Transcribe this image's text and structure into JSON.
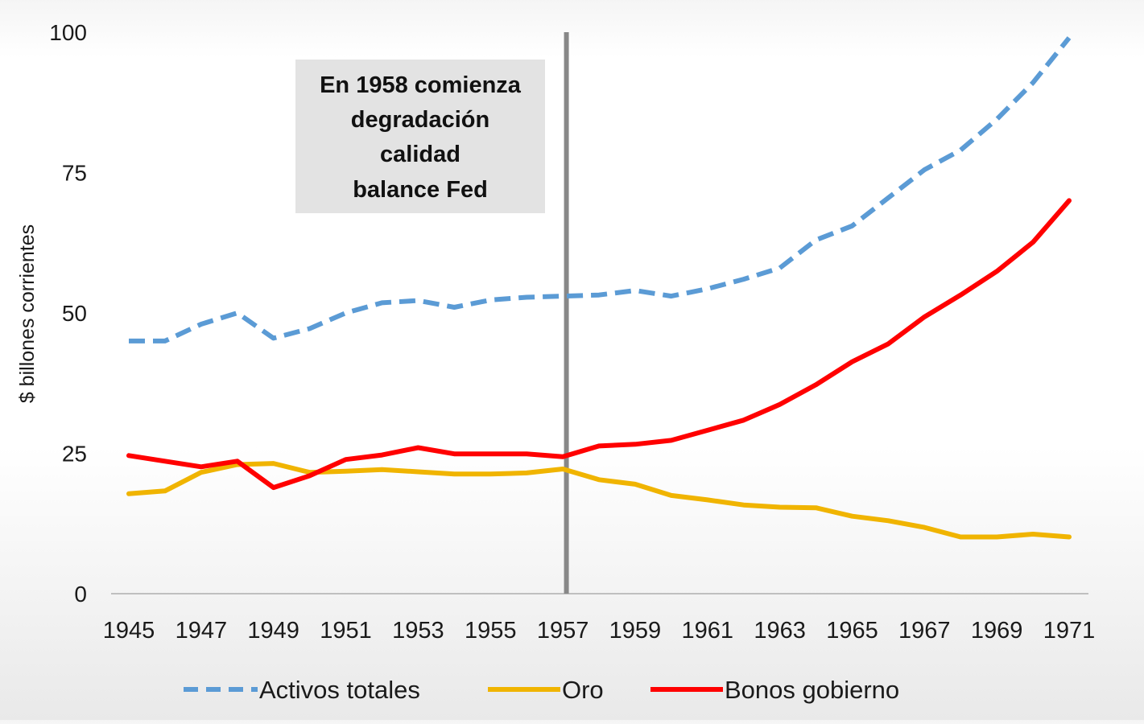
{
  "chart_data": {
    "type": "line",
    "title": "",
    "xlabel": "",
    "ylabel": "$ billones corrientes",
    "ylim": [
      0,
      100
    ],
    "yticks": [
      0,
      25,
      50,
      75,
      100
    ],
    "xlim": [
      1945,
      1971
    ],
    "xticks": [
      1945,
      1947,
      1949,
      1951,
      1953,
      1955,
      1957,
      1959,
      1961,
      1963,
      1965,
      1967,
      1969,
      1971
    ],
    "x": [
      1945,
      1946,
      1947,
      1948,
      1949,
      1950,
      1951,
      1952,
      1953,
      1954,
      1955,
      1956,
      1957,
      1958,
      1959,
      1960,
      1961,
      1962,
      1963,
      1964,
      1965,
      1966,
      1967,
      1968,
      1969,
      1970,
      1971
    ],
    "series": [
      {
        "name": "Activos totales",
        "color": "#5b9bd5",
        "dash": true,
        "values": [
          45,
          45,
          48,
          50,
          45.5,
          47.2,
          50,
          51.8,
          52.2,
          51,
          52.3,
          52.8,
          53,
          53.2,
          54,
          53,
          54.3,
          56,
          58,
          63,
          65.5,
          70.5,
          75.5,
          79,
          84.5,
          91,
          99
        ]
      },
      {
        "name": "Oro",
        "color": "#f0b400",
        "dash": false,
        "values": [
          17.8,
          18.3,
          21.6,
          23,
          23.2,
          21.6,
          21.8,
          22.1,
          21.7,
          21.3,
          21.3,
          21.5,
          22.2,
          20.3,
          19.5,
          17.5,
          16.7,
          15.8,
          15.4,
          15.3,
          13.8,
          13,
          11.8,
          10.1,
          10.1,
          10.6,
          10.1
        ]
      },
      {
        "name": "Bonos gobierno",
        "color": "#ff0000",
        "dash": false,
        "values": [
          24.6,
          23.6,
          22.6,
          23.6,
          18.9,
          21,
          23.9,
          24.7,
          26,
          24.9,
          24.9,
          24.9,
          24.4,
          26.3,
          26.6,
          27.3,
          29.1,
          30.9,
          33.7,
          37.2,
          41.3,
          44.5,
          49.3,
          53.2,
          57.4,
          62.6,
          70
        ]
      }
    ],
    "annotations": [
      {
        "type": "vertical-line",
        "x": 1957.1,
        "color": "#888888"
      },
      {
        "type": "text-box",
        "lines": [
          "En 1958 comienza",
          "degradación",
          "calidad",
          "balance Fed"
        ]
      }
    ],
    "legend_position": "bottom",
    "grid": false
  }
}
